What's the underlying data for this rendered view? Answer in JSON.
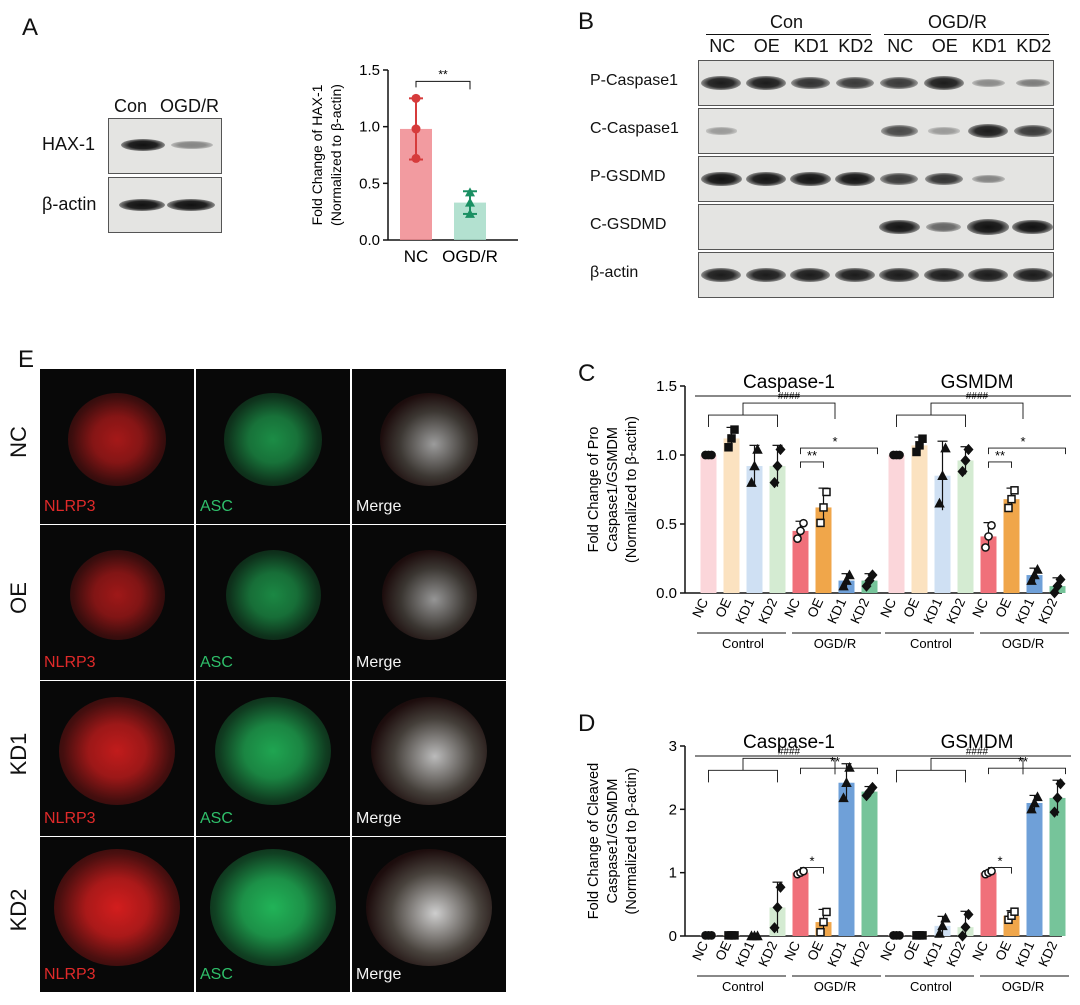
{
  "panels": {
    "a": "A",
    "b": "B",
    "c": "C",
    "d": "D",
    "e": "E"
  },
  "panel_a": {
    "blot_header": [
      "Con",
      "OGD/R"
    ],
    "blot_rows": [
      "HAX-1",
      "β-actin"
    ]
  },
  "panel_b": {
    "groups": [
      "Con",
      "OGD/R"
    ],
    "lanes": [
      "NC",
      "OE",
      "KD1",
      "KD2",
      "NC",
      "OE",
      "KD1",
      "KD2"
    ],
    "rows": [
      "P-Caspase1",
      "C-Caspase1",
      "P-GSDMD",
      "C-GSDMD",
      "β-actin"
    ]
  },
  "panel_e": {
    "rows": [
      "NC",
      "OE",
      "KD1",
      "KD2"
    ],
    "channels": [
      "NLRP3",
      "ASC",
      "Merge"
    ]
  },
  "chart_data": [
    {
      "id": "A",
      "type": "bar",
      "categories": [
        "NC",
        "OGD/R"
      ],
      "values": [
        0.98,
        0.33
      ],
      "errors": [
        0.27,
        0.1
      ],
      "points": [
        [
          1.25,
          0.98,
          0.72
        ],
        [
          0.42,
          0.33,
          0.23
        ]
      ],
      "colors": [
        "#f08a8f",
        "#a6dcc8"
      ],
      "point_colors": [
        "#d63b3b",
        "#1a8f62"
      ],
      "ylabel": [
        "Fold Change of HAX-1",
        "(Normalized to β-actin)"
      ],
      "ylim": [
        0,
        1.5
      ],
      "yticks": [
        "0.0",
        "0.5",
        "1.0",
        "1.5"
      ],
      "significance": [
        "**"
      ]
    },
    {
      "id": "C",
      "type": "bar",
      "ylabel": [
        "Fold Change of Pro",
        "Caspase1/GSMDM",
        "(Normalized to β-actin)"
      ],
      "ylim": [
        0,
        1.5
      ],
      "yticks": [
        "0.0",
        "0.5",
        "1.0",
        "1.5"
      ],
      "panels": [
        {
          "title": "Caspase-1",
          "categories": [
            "NC",
            "OE",
            "KD1",
            "KD2",
            "NC",
            "OE",
            "KD1",
            "KD2"
          ],
          "values": [
            1.0,
            1.12,
            0.92,
            0.92,
            0.45,
            0.62,
            0.09,
            0.09
          ],
          "errors": [
            0,
            0.08,
            0.15,
            0.15,
            0.07,
            0.14,
            0.05,
            0.05
          ],
          "groups": [
            "Control",
            "OGD/R"
          ],
          "annotations": [
            "####",
            "*",
            "**"
          ]
        },
        {
          "title": "GSMDM",
          "categories": [
            "NC",
            "OE",
            "KD1",
            "KD2",
            "NC",
            "OE",
            "KD1",
            "KD2"
          ],
          "values": [
            1.0,
            1.07,
            0.85,
            0.96,
            0.41,
            0.68,
            0.13,
            0.05
          ],
          "errors": [
            0,
            0.06,
            0.25,
            0.1,
            0.1,
            0.08,
            0.05,
            0.06
          ],
          "groups": [
            "Control",
            "OGD/R"
          ],
          "annotations": [
            "####",
            "*",
            "**"
          ]
        }
      ],
      "colors": [
        "#fbd6da",
        "#fbe2c0",
        "#cfe0f3",
        "#d4ebd2",
        "#f0707a",
        "#f0a64a",
        "#6fa0d8",
        "#76c49a"
      ]
    },
    {
      "id": "D",
      "type": "bar",
      "ylabel": [
        "Fold Change of Cleaved",
        "Caspase1/GSMDM",
        "(Normalized to β-actin)"
      ],
      "ylim": [
        0,
        3
      ],
      "yticks": [
        "0",
        "1",
        "2",
        "3"
      ],
      "panels": [
        {
          "title": "Caspase-1",
          "categories": [
            "NC",
            "OE",
            "KD1",
            "KD2",
            "NC",
            "OE",
            "KD1",
            "KD2"
          ],
          "values": [
            0.01,
            0.01,
            0.0,
            0.45,
            1.0,
            0.22,
            2.42,
            2.28
          ],
          "errors": [
            0,
            0,
            0,
            0.4,
            0.03,
            0.2,
            0.3,
            0.08
          ],
          "groups": [
            "Control",
            "OGD/R"
          ],
          "annotations": [
            "####",
            "**",
            "*"
          ]
        },
        {
          "title": "GSMDM",
          "categories": [
            "NC",
            "OE",
            "KD1",
            "KD2",
            "NC",
            "OE",
            "KD1",
            "KD2"
          ],
          "values": [
            0.01,
            0.01,
            0.16,
            0.14,
            1.0,
            0.32,
            2.1,
            2.18
          ],
          "errors": [
            0,
            0,
            0.15,
            0.25,
            0.03,
            0.08,
            0.12,
            0.28
          ],
          "groups": [
            "Control",
            "OGD/R"
          ],
          "annotations": [
            "####",
            "**",
            "*"
          ]
        }
      ],
      "colors": [
        "#fbd6da",
        "#fbe2c0",
        "#cfe0f3",
        "#d4ebd2",
        "#f0707a",
        "#f0a64a",
        "#6fa0d8",
        "#76c49a"
      ]
    }
  ]
}
